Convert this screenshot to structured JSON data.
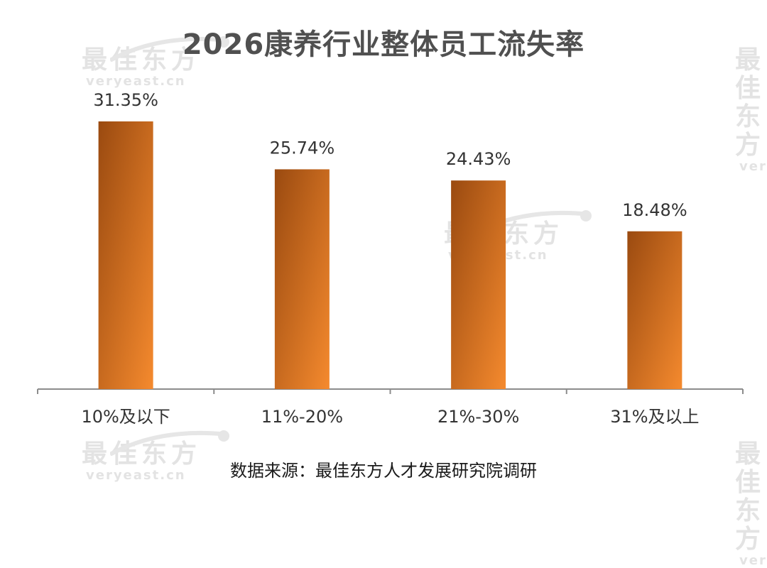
{
  "chart_data": {
    "type": "bar",
    "title": "2026康养行业整体员工流失率",
    "categories": [
      "10%及以下",
      "11%-20%",
      "21%-30%",
      "31%及以上"
    ],
    "values": [
      31.35,
      25.74,
      24.43,
      18.48
    ],
    "value_labels": [
      "31.35%",
      "25.74%",
      "24.43%",
      "18.48%"
    ],
    "xlabel": "",
    "ylabel": "",
    "ylim": [
      0,
      31.35
    ],
    "grid": false,
    "legend": "none",
    "bar_color_top": "#9a4a10",
    "bar_color_bottom": "#f58a2e",
    "axis_color": "#8c8c8c"
  },
  "source_note": "数据来源：最佳东方人才发展研究院调研",
  "watermark": {
    "cn": "最佳东方",
    "en": "veryeast.cn"
  }
}
